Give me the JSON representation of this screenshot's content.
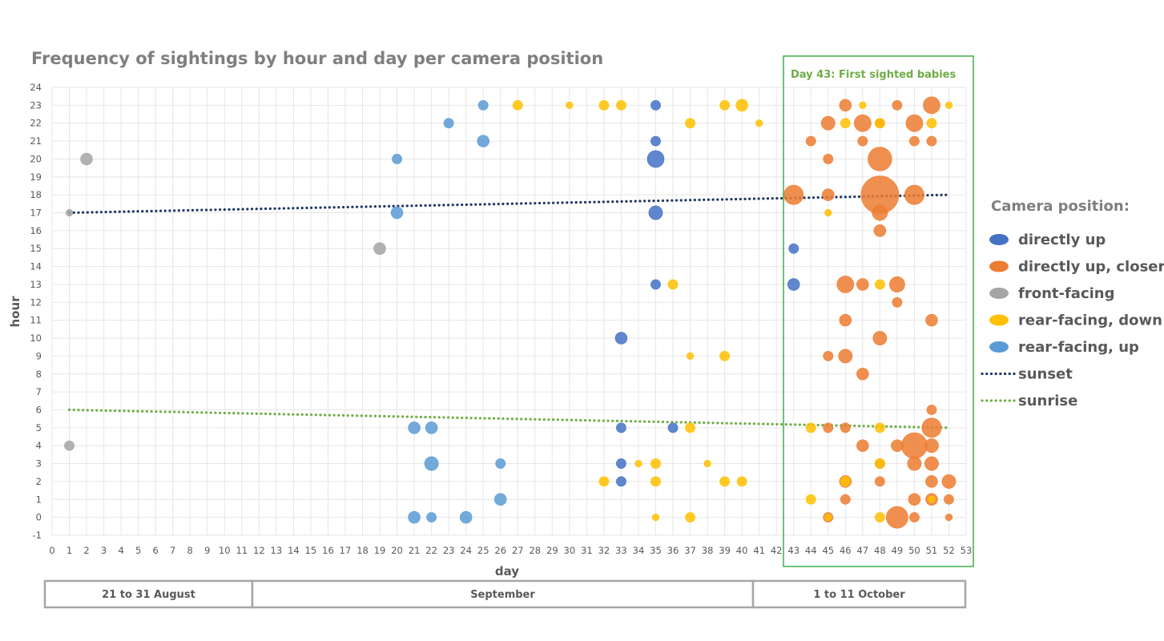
{
  "chart_data": {
    "type": "bubble",
    "title": "Frequency of sightings by hour and day per camera position",
    "xlabel": "day",
    "ylabel": "hour",
    "xlim": [
      0,
      53
    ],
    "ylim": [
      -1,
      24
    ],
    "grid": true,
    "x_ticks": [
      0,
      1,
      2,
      3,
      4,
      5,
      6,
      7,
      8,
      9,
      10,
      11,
      12,
      13,
      14,
      15,
      16,
      17,
      18,
      19,
      20,
      21,
      22,
      23,
      24,
      25,
      26,
      27,
      28,
      29,
      30,
      31,
      32,
      33,
      34,
      35,
      36,
      37,
      38,
      39,
      40,
      41,
      42,
      43,
      44,
      45,
      46,
      47,
      48,
      49,
      50,
      51,
      52,
      53
    ],
    "y_ticks": [
      -1,
      0,
      1,
      2,
      3,
      4,
      5,
      6,
      7,
      8,
      9,
      10,
      11,
      12,
      13,
      14,
      15,
      16,
      17,
      18,
      19,
      20,
      21,
      22,
      23,
      24
    ],
    "legend_title": "Camera position:",
    "legend_position": "right",
    "colors": {
      "directly up": "#4472c4",
      "directly up, closer": "#ed7d31",
      "front-facing": "#a5a5a5",
      "rear-facing, down": "#ffc000",
      "rear-facing, up": "#5b9bd5",
      "sunrise": "#70ad47",
      "sunset": "#203864"
    },
    "series": [
      {
        "name": "directly up",
        "points": [
          [
            33,
            10,
            3
          ],
          [
            35,
            23,
            2
          ],
          [
            35,
            21,
            2
          ],
          [
            35,
            20,
            6
          ],
          [
            35,
            17,
            4
          ],
          [
            35,
            13,
            2
          ],
          [
            43,
            15,
            2
          ],
          [
            43,
            13,
            3
          ],
          [
            33,
            5,
            2
          ],
          [
            33,
            3,
            2
          ],
          [
            33,
            2,
            2
          ],
          [
            36,
            5,
            2
          ]
        ]
      },
      {
        "name": "directly up, closer",
        "points": [
          [
            43,
            18,
            8
          ],
          [
            45,
            18,
            3
          ],
          [
            48,
            18,
            30
          ],
          [
            48,
            20,
            12
          ],
          [
            50,
            18,
            8
          ],
          [
            48,
            17,
            5
          ],
          [
            48,
            16,
            3
          ],
          [
            46,
            23,
            3
          ],
          [
            45,
            22,
            4
          ],
          [
            47,
            22,
            6
          ],
          [
            48,
            22,
            2
          ],
          [
            50,
            22,
            6
          ],
          [
            51,
            23,
            6
          ],
          [
            49,
            23,
            2
          ],
          [
            44,
            21,
            2
          ],
          [
            47,
            21,
            2
          ],
          [
            50,
            21,
            2
          ],
          [
            51,
            21,
            2
          ],
          [
            45,
            20,
            2
          ],
          [
            46,
            13,
            6
          ],
          [
            47,
            13,
            3
          ],
          [
            49,
            13,
            5
          ],
          [
            49,
            12,
            2
          ],
          [
            46,
            11,
            3
          ],
          [
            51,
            11,
            3
          ],
          [
            48,
            10,
            4
          ],
          [
            46,
            9,
            4
          ],
          [
            45,
            9,
            2
          ],
          [
            47,
            8,
            3
          ],
          [
            51,
            6,
            2
          ],
          [
            51,
            5,
            8
          ],
          [
            50,
            4,
            14
          ],
          [
            51,
            4,
            4
          ],
          [
            47,
            4,
            3
          ],
          [
            49,
            4,
            3
          ],
          [
            50,
            3,
            4
          ],
          [
            51,
            3,
            4
          ],
          [
            48,
            3,
            2
          ],
          [
            46,
            2,
            3
          ],
          [
            48,
            2,
            2
          ],
          [
            51,
            2,
            3
          ],
          [
            52,
            2,
            4
          ],
          [
            50,
            1,
            3
          ],
          [
            51,
            1,
            3
          ],
          [
            46,
            1,
            2
          ],
          [
            52,
            1,
            2
          ],
          [
            49,
            0,
            10
          ],
          [
            50,
            0,
            2
          ],
          [
            52,
            0,
            1
          ],
          [
            45,
            0,
            2
          ],
          [
            45,
            5,
            2
          ],
          [
            46,
            5,
            2
          ]
        ]
      },
      {
        "name": "front-facing",
        "points": [
          [
            2,
            20,
            3
          ],
          [
            1,
            17,
            1
          ],
          [
            19,
            15,
            3
          ],
          [
            1,
            4,
            2
          ]
        ]
      },
      {
        "name": "rear-facing, down",
        "points": [
          [
            27,
            23,
            2
          ],
          [
            30,
            23,
            1
          ],
          [
            32,
            23,
            2
          ],
          [
            33,
            23,
            2
          ],
          [
            39,
            23,
            2
          ],
          [
            40,
            23,
            3
          ],
          [
            47,
            23,
            1
          ],
          [
            52,
            23,
            1
          ],
          [
            37,
            22,
            2
          ],
          [
            41,
            22,
            1
          ],
          [
            46,
            22,
            2
          ],
          [
            48,
            22,
            2
          ],
          [
            51,
            22,
            2
          ],
          [
            45,
            17,
            1
          ],
          [
            36,
            13,
            2
          ],
          [
            48,
            13,
            2
          ],
          [
            37,
            9,
            1
          ],
          [
            39,
            9,
            2
          ],
          [
            37,
            5,
            2
          ],
          [
            44,
            5,
            2
          ],
          [
            48,
            5,
            2
          ],
          [
            34,
            3,
            1
          ],
          [
            35,
            3,
            2
          ],
          [
            38,
            3,
            1
          ],
          [
            48,
            3,
            2
          ],
          [
            32,
            2,
            2
          ],
          [
            35,
            2,
            2
          ],
          [
            39,
            2,
            2
          ],
          [
            40,
            2,
            2
          ],
          [
            46,
            2,
            2
          ],
          [
            44,
            1,
            2
          ],
          [
            51,
            1,
            1
          ],
          [
            35,
            0,
            1
          ],
          [
            37,
            0,
            2
          ],
          [
            45,
            0,
            1
          ],
          [
            48,
            0,
            2
          ]
        ]
      },
      {
        "name": "rear-facing, up",
        "points": [
          [
            25,
            23,
            2
          ],
          [
            23,
            22,
            2
          ],
          [
            25,
            21,
            3
          ],
          [
            20,
            20,
            2
          ],
          [
            20,
            17,
            3
          ],
          [
            21,
            5,
            3
          ],
          [
            22,
            5,
            3
          ],
          [
            22,
            3,
            4
          ],
          [
            26,
            3,
            2
          ],
          [
            26,
            1,
            3
          ],
          [
            21,
            0,
            3
          ],
          [
            22,
            0,
            2
          ],
          [
            24,
            0,
            3
          ]
        ]
      }
    ],
    "trendlines": [
      {
        "name": "sunset",
        "from": [
          1,
          17
        ],
        "to": [
          52,
          18
        ]
      },
      {
        "name": "sunrise",
        "from": [
          1,
          6
        ],
        "to": [
          52,
          5
        ]
      }
    ],
    "annotation": {
      "text": "Day 43: First sighted babies"
    },
    "periods": [
      {
        "label": "21 to 31 August"
      },
      {
        "label": "September"
      },
      {
        "label": "1 to 11 October"
      }
    ]
  }
}
